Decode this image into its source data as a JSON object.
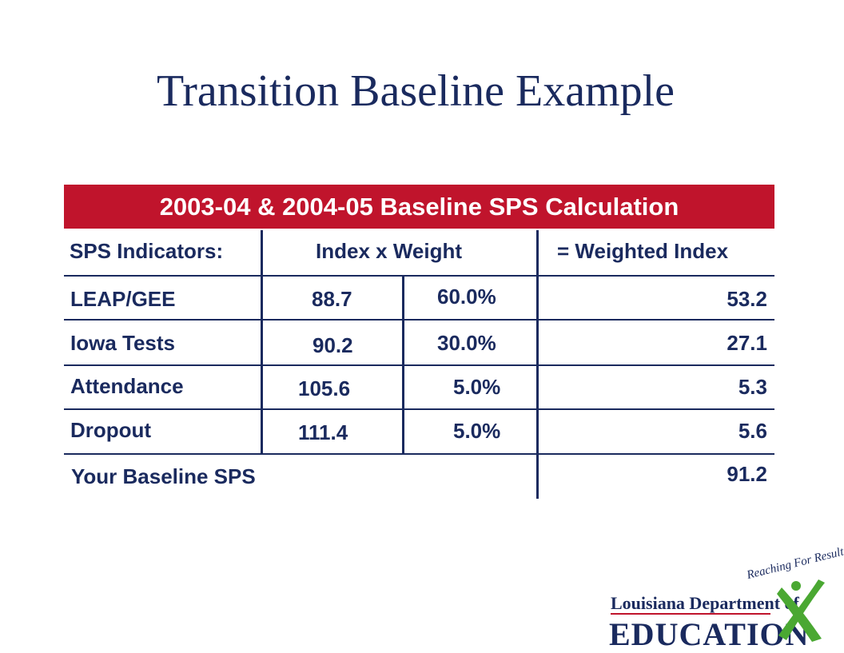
{
  "title": "Transition Baseline Example",
  "banner": "2003-04 & 2004-05 Baseline SPS Calculation",
  "headers": {
    "indicators": "SPS Indicators:",
    "index_weight": "Index x Weight",
    "weighted": "= Weighted Index"
  },
  "rows": [
    {
      "indicator": "LEAP/GEE",
      "index": "88.7",
      "weight": "60.0%",
      "weighted": "53.2"
    },
    {
      "indicator": "Iowa Tests",
      "index": "90.2",
      "weight": "30.0%",
      "weighted": "27.1"
    },
    {
      "indicator": "Attendance",
      "index": "105.6",
      "weight": "5.0%",
      "weighted": "5.3"
    },
    {
      "indicator": "Dropout",
      "index": "111.4",
      "weight": "5.0%",
      "weighted": "5.6"
    }
  ],
  "total": {
    "label": "Your Baseline SPS",
    "value": "91.2"
  },
  "logo": {
    "tagline": "Reaching For Results",
    "department": "Louisiana Department of",
    "name": "EDUCATION"
  },
  "colors": {
    "navy": "#1a2a5e",
    "banner_red": "#c0142c",
    "logo_green": "#4aa832"
  }
}
